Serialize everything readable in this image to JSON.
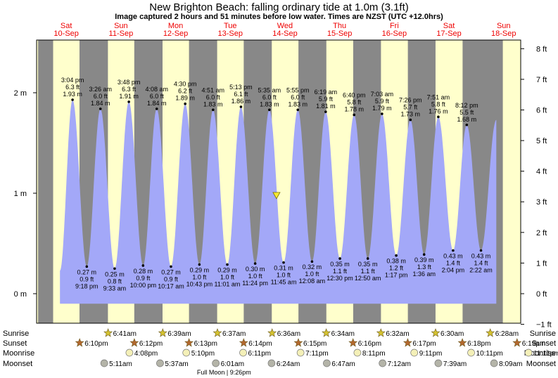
{
  "header": {
    "title": "New Brighton Beach: falling  ordinary tide at 1.0m (3.1ft)",
    "subtitle": "Image captured 2 hours and 51 minutes before low water. Times are NZST (UTC +12.0hrs)"
  },
  "days": [
    {
      "name": "Sat",
      "date": "10-Sep"
    },
    {
      "name": "Sun",
      "date": "11-Sep"
    },
    {
      "name": "Mon",
      "date": "12-Sep"
    },
    {
      "name": "Tue",
      "date": "13-Sep"
    },
    {
      "name": "Wed",
      "date": "14-Sep"
    },
    {
      "name": "Thu",
      "date": "15-Sep"
    },
    {
      "name": "Fri",
      "date": "16-Sep"
    },
    {
      "name": "Sat",
      "date": "17-Sep"
    },
    {
      "name": "Sun",
      "date": "18-Sep"
    }
  ],
  "chart_data": {
    "type": "area",
    "y_left_label": "m",
    "y_right_label": "ft",
    "ylim_m": [
      -0.1,
      2.47
    ],
    "xlim_days": [
      -0.5,
      8.0
    ],
    "y_left_ticks": [
      {
        "v": 0,
        "label": "0 m"
      },
      {
        "v": 1,
        "label": "1 m"
      },
      {
        "v": 2,
        "label": "2 m"
      }
    ],
    "y_right_ticks": [
      {
        "v": -1,
        "label": "−1 ft"
      },
      {
        "v": 0,
        "label": "0 ft"
      },
      {
        "v": 1,
        "label": "1 ft"
      },
      {
        "v": 2,
        "label": "2 ft"
      },
      {
        "v": 3,
        "label": "3 ft"
      },
      {
        "v": 4,
        "label": "4 ft"
      },
      {
        "v": 5,
        "label": "5 ft"
      },
      {
        "v": 6,
        "label": "6 ft"
      },
      {
        "v": 7,
        "label": "7 ft"
      },
      {
        "v": 8,
        "label": "8 ft"
      }
    ],
    "series_start": {
      "t": -0.1,
      "h": 0.23
    },
    "series_end": {
      "t": 7.88,
      "h": 1.73
    },
    "tides": [
      {
        "type": "high",
        "t": 0.13,
        "h": 1.93,
        "time": "3:04 pm",
        "ft": "6.3 ft",
        "m": "1.93 m"
      },
      {
        "type": "low",
        "t": 0.39,
        "h": 0.27,
        "time": "9:18 pm",
        "ft": "0.9 ft",
        "m": "0.27 m"
      },
      {
        "type": "high",
        "t": 0.64,
        "h": 1.84,
        "time": "3:26 am",
        "ft": "6.0 ft",
        "m": "1.84 m"
      },
      {
        "type": "low",
        "t": 0.9,
        "h": 0.25,
        "time": "9:33 am",
        "ft": "0.8 ft",
        "m": "0.25 m"
      },
      {
        "type": "high",
        "t": 1.16,
        "h": 1.91,
        "time": "3:48 pm",
        "ft": "6.3 ft",
        "m": "1.91 m"
      },
      {
        "type": "low",
        "t": 1.42,
        "h": 0.28,
        "time": "10:00 pm",
        "ft": "0.9 ft",
        "m": "0.28 m"
      },
      {
        "type": "high",
        "t": 1.67,
        "h": 1.84,
        "time": "4:08 am",
        "ft": "6.0 ft",
        "m": "1.84 m"
      },
      {
        "type": "low",
        "t": 1.93,
        "h": 0.27,
        "time": "10:17 am",
        "ft": "0.9 ft",
        "m": "0.27 m"
      },
      {
        "type": "high",
        "t": 2.19,
        "h": 1.89,
        "time": "4:30 pm",
        "ft": "6.2 ft",
        "m": "1.89 m"
      },
      {
        "type": "low",
        "t": 2.45,
        "h": 0.29,
        "time": "10:43 pm",
        "ft": "1.0 ft",
        "m": "0.29 m"
      },
      {
        "type": "high",
        "t": 2.7,
        "h": 1.83,
        "time": "4:51 am",
        "ft": "6.0 ft",
        "m": "1.83 m"
      },
      {
        "type": "low",
        "t": 2.96,
        "h": 0.29,
        "time": "11:01 am",
        "ft": "1.0 ft",
        "m": "0.29 m"
      },
      {
        "type": "high",
        "t": 3.21,
        "h": 1.86,
        "time": "5:13 pm",
        "ft": "6.1 ft",
        "m": "1.86 m"
      },
      {
        "type": "low",
        "t": 3.47,
        "h": 0.3,
        "time": "11:24 pm",
        "ft": "1.0 ft",
        "m": "0.30 m"
      },
      {
        "type": "high",
        "t": 3.73,
        "h": 1.83,
        "time": "5:35 am",
        "ft": "6.0 ft",
        "m": "1.83 m"
      },
      {
        "type": "low",
        "t": 3.99,
        "h": 0.31,
        "time": "11:45 am",
        "ft": "1.0 ft",
        "m": "0.31 m"
      },
      {
        "type": "high",
        "t": 4.25,
        "h": 1.83,
        "time": "5:55 pm",
        "ft": "6.0 ft",
        "m": "1.83 m"
      },
      {
        "type": "low",
        "t": 4.51,
        "h": 0.32,
        "time": "12:08 am",
        "ft": "1.0 ft",
        "m": "0.32 m"
      },
      {
        "type": "high",
        "t": 4.76,
        "h": 1.81,
        "time": "6:19 am",
        "ft": "5.9 ft",
        "m": "1.81 m"
      },
      {
        "type": "low",
        "t": 5.02,
        "h": 0.35,
        "time": "12:30 pm",
        "ft": "1.1 ft",
        "m": "0.35 m"
      },
      {
        "type": "high",
        "t": 5.28,
        "h": 1.78,
        "time": "6:40 pm",
        "ft": "5.8 ft",
        "m": "1.78 m"
      },
      {
        "type": "low",
        "t": 5.53,
        "h": 0.35,
        "time": "12:50 am",
        "ft": "1.1 ft",
        "m": "0.35 m"
      },
      {
        "type": "high",
        "t": 5.79,
        "h": 1.79,
        "time": "7:03 am",
        "ft": "5.9 ft",
        "m": "1.79 m"
      },
      {
        "type": "low",
        "t": 6.05,
        "h": 0.38,
        "time": "1:17 pm",
        "ft": "1.2 ft",
        "m": "0.38 m"
      },
      {
        "type": "high",
        "t": 6.31,
        "h": 1.73,
        "time": "7:26 pm",
        "ft": "5.7 ft",
        "m": "1.73 m"
      },
      {
        "type": "low",
        "t": 6.56,
        "h": 0.39,
        "time": "1:36 am",
        "ft": "1.3 ft",
        "m": "0.39 m"
      },
      {
        "type": "high",
        "t": 6.82,
        "h": 1.76,
        "time": "7:51 am",
        "ft": "5.8 ft",
        "m": "1.76 m"
      },
      {
        "type": "low",
        "t": 7.09,
        "h": 0.43,
        "time": "2:04 pm",
        "ft": "1.4 ft",
        "m": "0.43 m"
      },
      {
        "type": "high",
        "t": 7.34,
        "h": 1.68,
        "time": "8:12 pm",
        "ft": "5.5 ft",
        "m": "1.68 m"
      },
      {
        "type": "low",
        "t": 7.6,
        "h": 0.43,
        "time": "2:22 am",
        "ft": "1.4 ft",
        "m": "0.43 m"
      }
    ],
    "current_marker": {
      "t": 3.86,
      "h": 0.98,
      "label": "now"
    },
    "night_periods": [
      {
        "start": -0.5,
        "end": -0.225
      },
      {
        "start": 0.257,
        "end": 0.777
      },
      {
        "start": 1.259,
        "end": 1.776
      },
      {
        "start": 2.26,
        "end": 2.775
      },
      {
        "start": 3.261,
        "end": 3.774
      },
      {
        "start": 4.262,
        "end": 4.772
      },
      {
        "start": 5.263,
        "end": 5.771
      },
      {
        "start": 6.263,
        "end": 6.769
      },
      {
        "start": 7.264,
        "end": 8.0
      }
    ]
  },
  "legend_rows": {
    "sunrise": {
      "label": "Sunrise",
      "color": "#d4c230",
      "events": [
        {
          "t": 0.78,
          "time": "6:41am"
        },
        {
          "t": 1.78,
          "time": "6:39am"
        },
        {
          "t": 2.78,
          "time": "6:37am"
        },
        {
          "t": 3.78,
          "time": "6:36am"
        },
        {
          "t": 4.77,
          "time": "6:34am"
        },
        {
          "t": 5.77,
          "time": "6:32am"
        },
        {
          "t": 6.77,
          "time": "6:30am"
        },
        {
          "t": 7.77,
          "time": "6:28am"
        }
      ]
    },
    "sunset": {
      "label": "Sunset",
      "color": "#b3682e",
      "events": [
        {
          "t": 0.26,
          "time": "6:10pm"
        },
        {
          "t": 1.26,
          "time": "6:12pm"
        },
        {
          "t": 2.26,
          "time": "6:13pm"
        },
        {
          "t": 3.26,
          "time": "6:14pm"
        },
        {
          "t": 4.26,
          "time": "6:15pm"
        },
        {
          "t": 5.26,
          "time": "6:16pm"
        },
        {
          "t": 6.26,
          "time": "6:17pm"
        },
        {
          "t": 7.26,
          "time": "6:18pm"
        },
        {
          "t": 8.26,
          "time": "6:19pm"
        }
      ]
    },
    "moonrise": {
      "label": "Moonrise",
      "color": "#f4f0b8",
      "events": [
        {
          "t": 1.17,
          "time": "4:08pm"
        },
        {
          "t": 2.21,
          "time": "5:10pm"
        },
        {
          "t": 3.25,
          "time": "6:11pm"
        },
        {
          "t": 4.3,
          "time": "7:11pm"
        },
        {
          "t": 5.34,
          "time": "8:11pm"
        },
        {
          "t": 6.38,
          "time": "9:11pm"
        },
        {
          "t": 7.42,
          "time": "10:11pm"
        },
        {
          "t": 8.47,
          "time": "11:11pm"
        }
      ]
    },
    "moonset": {
      "label": "Moonset",
      "color": "#b4b4a8",
      "events": [
        {
          "t": 0.71,
          "time": "5:11am"
        },
        {
          "t": 1.73,
          "time": "5:37am"
        },
        {
          "t": 2.75,
          "time": "6:01am"
        },
        {
          "t": 3.77,
          "time": "6:24am"
        },
        {
          "t": 4.78,
          "time": "6:47am"
        },
        {
          "t": 5.8,
          "time": "7:12am"
        },
        {
          "t": 6.82,
          "time": "7:39am"
        },
        {
          "t": 7.84,
          "time": "8:09am"
        }
      ]
    }
  },
  "moon_phase": {
    "t": 2.9,
    "label": "Full Moon | 9:26pm"
  },
  "colors": {
    "day": "#ffffcc",
    "night": "#888888",
    "water": "#a3a8f8",
    "day_label": "#ee0000",
    "text": "#000000",
    "now_marker": "#f7ea33"
  }
}
